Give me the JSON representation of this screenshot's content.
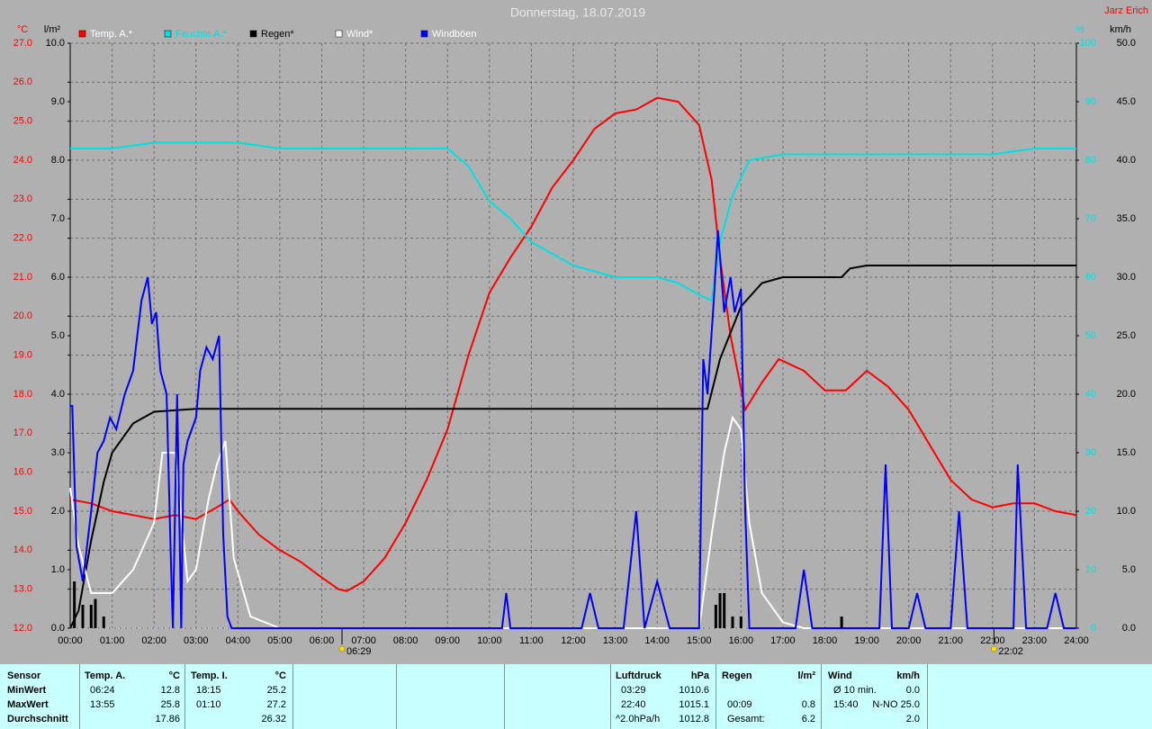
{
  "chart_data": {
    "type": "line",
    "title": "Donnerstag, 18.07.2019",
    "author": "Jarz Erich",
    "grid": true,
    "xlim": [
      0,
      24
    ],
    "xticks": [
      {
        "value": 0,
        "label": "00:00"
      },
      {
        "value": 1,
        "label": "01:00"
      },
      {
        "value": 2,
        "label": "02:00"
      },
      {
        "value": 3,
        "label": "03:00"
      },
      {
        "value": 4,
        "label": "04:00"
      },
      {
        "value": 5,
        "label": "05:00"
      },
      {
        "value": 6,
        "label": "06:00"
      },
      {
        "value": 7,
        "label": "07:00"
      },
      {
        "value": 8,
        "label": "08:00"
      },
      {
        "value": 9,
        "label": "09:00"
      },
      {
        "value": 10,
        "label": "10:00"
      },
      {
        "value": 11,
        "label": "11:00"
      },
      {
        "value": 12,
        "label": "12:00"
      },
      {
        "value": 13,
        "label": "13:00"
      },
      {
        "value": 14,
        "label": "14:00"
      },
      {
        "value": 15,
        "label": "15:00"
      },
      {
        "value": 16,
        "label": "16:00"
      },
      {
        "value": 17,
        "label": "17:00"
      },
      {
        "value": 18,
        "label": "18:00"
      },
      {
        "value": 19,
        "label": "19:00"
      },
      {
        "value": 20,
        "label": "20:00"
      },
      {
        "value": 21,
        "label": "21:00"
      },
      {
        "value": 22,
        "label": "22:00"
      },
      {
        "value": 23,
        "label": "23:00"
      },
      {
        "value": 24,
        "label": "24:00"
      }
    ],
    "y_unit": "°C",
    "y_color": "#ff0000",
    "ylim": [
      12,
      27
    ],
    "yticks": [
      {
        "value": 12,
        "label": "12.0"
      },
      {
        "value": 13,
        "label": "13.0"
      },
      {
        "value": 14,
        "label": "14.0"
      },
      {
        "value": 15,
        "label": "15.0"
      },
      {
        "value": 16,
        "label": "16.0"
      },
      {
        "value": 17,
        "label": "17.0"
      },
      {
        "value": 18,
        "label": "18.0"
      },
      {
        "value": 19,
        "label": "19.0"
      },
      {
        "value": 20,
        "label": "20.0"
      },
      {
        "value": 21,
        "label": "21.0"
      },
      {
        "value": 22,
        "label": "22.0"
      },
      {
        "value": 23,
        "label": "23.0"
      },
      {
        "value": 24,
        "label": "24.0"
      },
      {
        "value": 25,
        "label": "25.0"
      },
      {
        "value": 26,
        "label": "26.0"
      },
      {
        "value": 27,
        "label": "27.0"
      }
    ],
    "y2_unit": "l/m²",
    "y2_color": "#000000",
    "y2lim": [
      0,
      10
    ],
    "y2ticks": [
      {
        "value": 0,
        "label": "0.0"
      },
      {
        "value": 1,
        "label": "1.0"
      },
      {
        "value": 2,
        "label": "2.0"
      },
      {
        "value": 3,
        "label": "3.0"
      },
      {
        "value": 4,
        "label": "4.0"
      },
      {
        "value": 5,
        "label": "5.0"
      },
      {
        "value": 6,
        "label": "6.0"
      },
      {
        "value": 7,
        "label": "7.0"
      },
      {
        "value": 8,
        "label": "8.0"
      },
      {
        "value": 9,
        "label": "9.0"
      },
      {
        "value": 10,
        "label": "10.0"
      }
    ],
    "y3_unit": "%",
    "y3_color": "#00e0e0",
    "y3lim": [
      0,
      100
    ],
    "y3ticks": [
      0,
      10,
      20,
      30,
      40,
      50,
      60,
      70,
      80,
      90,
      100
    ],
    "y4_unit": "km/h",
    "y4_color": "#000000",
    "y4lim": [
      0,
      50
    ],
    "y4ticks": [
      {
        "value": 0,
        "label": "0.0"
      },
      {
        "value": 5,
        "label": "5.0"
      },
      {
        "value": 10,
        "label": "10.0"
      },
      {
        "value": 15,
        "label": "15.0"
      },
      {
        "value": 20,
        "label": "20.0"
      },
      {
        "value": 25,
        "label": "25.0"
      },
      {
        "value": 30,
        "label": "30.0"
      },
      {
        "value": 35,
        "label": "35.0"
      },
      {
        "value": 40,
        "label": "40.0"
      },
      {
        "value": 45,
        "label": "45.0"
      },
      {
        "value": 50,
        "label": "50.0"
      }
    ],
    "series": [
      {
        "name": "Temp. A.*",
        "color": "#ff0000",
        "axis": "y",
        "x": [
          0,
          0.5,
          1,
          1.5,
          2,
          2.5,
          3,
          3.5,
          3.8,
          4,
          4.5,
          5,
          5.5,
          6,
          6.4,
          6.6,
          7,
          7.5,
          8,
          8.5,
          9,
          9.5,
          10,
          10.5,
          11,
          11.5,
          12,
          12.5,
          13,
          13.5,
          14,
          14.5,
          15,
          15.3,
          15.5,
          15.75,
          16.1,
          16.5,
          16.9,
          17.5,
          18,
          18.5,
          19,
          19.5,
          20,
          20.5,
          21,
          21.5,
          22,
          22.5,
          23,
          23.5,
          24
        ],
        "values": [
          15.3,
          15.2,
          15.0,
          14.9,
          14.8,
          14.9,
          14.8,
          15.1,
          15.3,
          15.0,
          14.4,
          14.0,
          13.7,
          13.3,
          13.0,
          12.95,
          13.2,
          13.8,
          14.7,
          15.8,
          17.1,
          19.0,
          20.6,
          21.5,
          22.3,
          23.3,
          24.0,
          24.8,
          25.2,
          25.3,
          25.6,
          25.5,
          24.9,
          23.5,
          21.5,
          19.5,
          17.6,
          18.3,
          18.9,
          18.6,
          18.1,
          18.1,
          18.6,
          18.2,
          17.6,
          16.7,
          15.8,
          15.3,
          15.1,
          15.2,
          15.2,
          15.0,
          14.9
        ]
      },
      {
        "name": "Feuchte A.*",
        "color": "#00e0e0",
        "axis": "y3",
        "x": [
          0,
          1,
          2,
          3,
          4,
          5,
          6,
          7,
          8,
          8.5,
          9,
          9.5,
          10,
          10.5,
          11,
          11.5,
          12,
          12.5,
          13,
          13.5,
          14,
          14.5,
          15,
          15.3,
          15.5,
          15.8,
          16.2,
          17,
          18,
          19,
          20,
          21,
          22,
          23,
          24
        ],
        "values": [
          82,
          82,
          83,
          83,
          83,
          82,
          82,
          82,
          82,
          82,
          82,
          79,
          73,
          70,
          66,
          64,
          62,
          61,
          60,
          60,
          60,
          59,
          57,
          56,
          66,
          74,
          80,
          81,
          81,
          81,
          81,
          81,
          81,
          82,
          82
        ]
      },
      {
        "name": "Regen*",
        "color": "#000000",
        "axis": "y2",
        "x": [
          0,
          0.2,
          0.5,
          0.8,
          1,
          1.5,
          2,
          3,
          15.2,
          15.5,
          16,
          16.5,
          17,
          18.4,
          18.6,
          19,
          24
        ],
        "values": [
          0,
          0.3,
          1.5,
          2.5,
          3.0,
          3.5,
          3.7,
          3.75,
          3.75,
          4.6,
          5.5,
          5.9,
          6.0,
          6.0,
          6.15,
          6.2,
          6.2
        ]
      },
      {
        "name": "Wind*",
        "color": "#ffffff",
        "axis": "y4",
        "x": [
          0,
          0.2,
          0.5,
          1,
          1.5,
          2,
          2.2,
          2.5,
          2.8,
          3,
          3.3,
          3.5,
          3.7,
          3.9,
          4.3,
          5,
          15,
          15.3,
          15.6,
          15.8,
          16,
          16.2,
          16.5,
          17,
          17.5,
          24
        ],
        "values": [
          12,
          7,
          3,
          3,
          5,
          9,
          15,
          15,
          4,
          5,
          11,
          14,
          16,
          6,
          1,
          0,
          0,
          8,
          15,
          18,
          17,
          9,
          3,
          0.5,
          0,
          0
        ]
      },
      {
        "name": "Windböen",
        "color": "#0000ff",
        "axis": "y4",
        "x": [
          0,
          0.05,
          0.15,
          0.3,
          0.5,
          0.65,
          0.8,
          0.95,
          1.1,
          1.3,
          1.5,
          1.7,
          1.85,
          1.95,
          2.05,
          2.15,
          2.3,
          2.4,
          2.45,
          2.55,
          2.65,
          2.7,
          2.8,
          3.0,
          3.1,
          3.25,
          3.4,
          3.55,
          3.65,
          3.75,
          3.85,
          10.3,
          10.4,
          10.5,
          12.2,
          12.4,
          12.6,
          13.2,
          13.5,
          13.7,
          14.0,
          14.3,
          15.0,
          15.1,
          15.2,
          15.35,
          15.45,
          15.6,
          15.75,
          15.85,
          16.0,
          16.1,
          16.2,
          17.3,
          17.5,
          17.7,
          19.3,
          19.45,
          19.6,
          20.0,
          20.2,
          20.4,
          21.0,
          21.2,
          21.4,
          22.5,
          22.6,
          22.8,
          23.3,
          23.5,
          23.7,
          24
        ],
        "values": [
          19,
          19,
          7,
          4,
          10,
          15,
          16,
          18,
          17,
          20,
          22,
          28,
          30,
          26,
          27,
          22,
          20,
          6,
          0,
          20,
          0,
          14,
          16,
          18,
          22,
          24,
          23,
          25,
          8,
          1,
          0,
          0,
          3,
          0,
          0,
          3,
          0,
          0,
          10,
          0,
          4,
          0,
          0,
          23,
          20,
          28,
          34,
          27,
          30,
          27,
          29,
          10,
          0,
          0,
          5,
          0,
          0,
          14,
          0,
          0,
          3,
          0,
          0,
          10,
          0,
          0,
          14,
          0,
          0,
          3,
          0,
          0
        ]
      }
    ],
    "rain_bars": {
      "color": "#000000",
      "axis": "y2",
      "x": [
        0.1,
        0.3,
        0.5,
        0.6,
        0.8,
        15.4,
        15.5,
        15.6,
        15.8,
        16.0,
        18.4
      ],
      "values": [
        0.8,
        0.4,
        0.4,
        0.5,
        0.2,
        0.4,
        0.6,
        0.6,
        0.2,
        0.2,
        0.2
      ]
    },
    "markers": [
      {
        "x": 6.483,
        "label": "06:29"
      },
      {
        "x": 22.033,
        "label": "22:02"
      }
    ]
  },
  "table": {
    "columns": [
      {
        "title": "Sensor",
        "rows": [
          "MinWert",
          "MaxWert",
          "Durchschnitt"
        ]
      },
      {
        "title": "Temp. A.",
        "unit": "°C",
        "rows": [
          [
            "06:24",
            "12.8"
          ],
          [
            "13:55",
            "25.8"
          ],
          [
            null,
            "17.86"
          ]
        ]
      },
      {
        "title": "Temp. I.",
        "unit": "°C",
        "rows": [
          [
            "18:15",
            "25.2"
          ],
          [
            "01:10",
            "27.2"
          ],
          [
            null,
            "26.32"
          ]
        ]
      },
      {
        "title": "Luftdruck",
        "unit": "hPa",
        "rows": [
          [
            "03:29",
            "1010.6"
          ],
          [
            "22:40",
            "1015.1"
          ],
          [
            "^2.0hPa/h",
            "1012.8"
          ]
        ]
      },
      {
        "title": "Regen",
        "unit": "l/m²",
        "rows": [
          [
            null,
            null
          ],
          [
            "00:09",
            "0.8"
          ],
          [
            "Gesamt:",
            "6.2"
          ]
        ]
      },
      {
        "title": "Wind",
        "unit": "km/h",
        "rows": [
          [
            "Ø 10 min.",
            "0.0"
          ],
          [
            "15:40",
            "N-NO 25.0"
          ],
          [
            null,
            "2.0"
          ]
        ]
      }
    ]
  }
}
